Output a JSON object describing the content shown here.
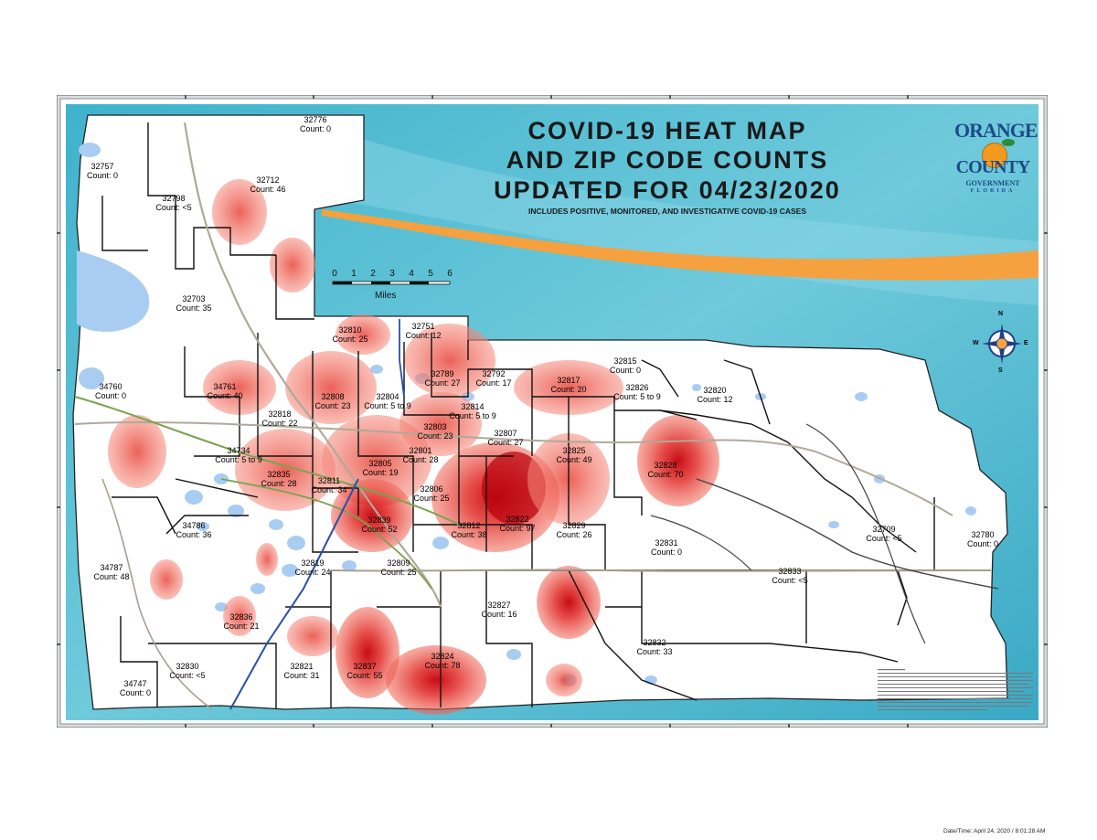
{
  "title": {
    "line1": "COVID-19 HEAT MAP",
    "line2": "AND ZIP CODE COUNTS",
    "line3": "UPDATED FOR 04/23/2020",
    "subtitle": "INCLUDES POSITIVE, MONITORED, AND INVESTIGATIVE COVID-19 CASES"
  },
  "logo": {
    "line1": "ORANGE",
    "line2": "COUNTY",
    "line3": "GOVERNMENT",
    "line4": "FLORIDA"
  },
  "scale_bar": {
    "ticks": [
      "0",
      "1",
      "2",
      "3",
      "4",
      "5",
      "6"
    ],
    "unit": "Miles"
  },
  "compass": {
    "n": "N",
    "s": "S",
    "e": "E",
    "w": "W"
  },
  "footer": "Date/Time: April 24, 2020 / 8:01:28 AM",
  "colors": {
    "ocean": "#55bcd3",
    "lake": "#a9cdf2",
    "heat": "#e8312a",
    "heat_core": "#c1000b",
    "band": "#f5a13f"
  },
  "zips": [
    {
      "zip": "32776",
      "count": "Count: 0"
    },
    {
      "zip": "32757",
      "count": "Count: 0"
    },
    {
      "zip": "32712",
      "count": "Count: 46"
    },
    {
      "zip": "32798",
      "count": "Count: <5"
    },
    {
      "zip": "32703",
      "count": "Count: 35"
    },
    {
      "zip": "32810",
      "count": "Count: 25"
    },
    {
      "zip": "32751",
      "count": "Count: 12"
    },
    {
      "zip": "32815",
      "count": "Count: 0"
    },
    {
      "zip": "34760",
      "count": "Count: 0"
    },
    {
      "zip": "34761",
      "count": "Count: 40"
    },
    {
      "zip": "32789",
      "count": "Count: 27"
    },
    {
      "zip": "32792",
      "count": "Count: 17"
    },
    {
      "zip": "32817",
      "count": "Count: 20"
    },
    {
      "zip": "32826",
      "count": "Count: 5 to 9"
    },
    {
      "zip": "32820",
      "count": "Count: 12"
    },
    {
      "zip": "32808",
      "count": "Count: 23"
    },
    {
      "zip": "32804",
      "count": "Count: 5 to 9"
    },
    {
      "zip": "32814",
      "count": "Count: 5 to 9"
    },
    {
      "zip": "32818",
      "count": "Count: 22"
    },
    {
      "zip": "32803",
      "count": "Count: 23"
    },
    {
      "zip": "32807",
      "count": "Count: 27"
    },
    {
      "zip": "34734",
      "count": "Count: 5 to 9"
    },
    {
      "zip": "32801",
      "count": "Count: 28"
    },
    {
      "zip": "32825",
      "count": "Count: 49"
    },
    {
      "zip": "32828",
      "count": "Count: 70"
    },
    {
      "zip": "32805",
      "count": "Count: 19"
    },
    {
      "zip": "32835",
      "count": "Count: 28"
    },
    {
      "zip": "32811",
      "count": "Count: 34"
    },
    {
      "zip": "32806",
      "count": "Count: 25"
    },
    {
      "zip": "32822",
      "count": "Count: 97"
    },
    {
      "zip": "32839",
      "count": "Count: 52"
    },
    {
      "zip": "32812",
      "count": "Count: 38"
    },
    {
      "zip": "32829",
      "count": "Count: 26"
    },
    {
      "zip": "34786",
      "count": "Count: 36"
    },
    {
      "zip": "32709",
      "count": "Count: <5"
    },
    {
      "zip": "32780",
      "count": "Count: 0"
    },
    {
      "zip": "32831",
      "count": "Count: 0"
    },
    {
      "zip": "34787",
      "count": "Count: 48"
    },
    {
      "zip": "32819",
      "count": "Count: 24"
    },
    {
      "zip": "32809",
      "count": "Count: 25"
    },
    {
      "zip": "32833",
      "count": "Count: <5"
    },
    {
      "zip": "32827",
      "count": "Count: 16"
    },
    {
      "zip": "32836",
      "count": "Count: 21"
    },
    {
      "zip": "32832",
      "count": "Count: 33"
    },
    {
      "zip": "32824",
      "count": "Count: 78"
    },
    {
      "zip": "32821",
      "count": "Count: 31"
    },
    {
      "zip": "32837",
      "count": "Count: 55"
    },
    {
      "zip": "32830",
      "count": "Count: <5"
    },
    {
      "zip": "34747",
      "count": "Count: 0"
    }
  ]
}
